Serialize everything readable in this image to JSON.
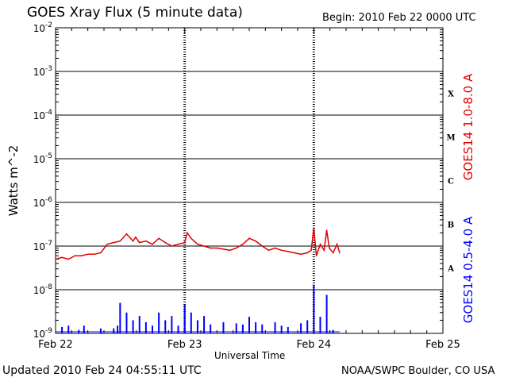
{
  "header": {
    "title": "GOES Xray Flux (5 minute data)",
    "begin": "Begin:  2010 Feb 22 0000 UTC"
  },
  "footer": {
    "updated": "Updated 2010 Feb 24 04:55:11 UTC",
    "credit": "NOAA/SWPC Boulder, CO USA"
  },
  "colors": {
    "long_channel": "#e00000",
    "short_channel": "#0000ff",
    "axis": "#000000"
  },
  "chart_data": {
    "type": "line",
    "title": "GOES Xray Flux (5 minute data)",
    "xlabel": "Universal Time",
    "ylabel": "Watts m^-2",
    "yscale": "log",
    "ylim": [
      1e-09,
      0.01
    ],
    "xlim_days": [
      0,
      3
    ],
    "x_tick_labels": [
      "Feb 22",
      "Feb 23",
      "Feb 24",
      "Feb 25"
    ],
    "y_tick_exponents": [
      -9,
      -8,
      -7,
      -6,
      -5,
      -4,
      -3,
      -2
    ],
    "y_tick_labels": [
      "10",
      "10",
      "10",
      "10",
      "10",
      "10",
      "10",
      "10"
    ],
    "y_tick_superscripts": [
      "-9",
      "-8",
      "-7",
      "-6",
      "-5",
      "-4",
      "-3",
      "-2"
    ],
    "flare_classes": [
      "A",
      "B",
      "C",
      "M",
      "X"
    ],
    "grid": true,
    "legend_position": "right",
    "series": [
      {
        "name": "GOES14 1.0-8.0 A",
        "color": "#e00000",
        "x": [
          0,
          0.05,
          0.1,
          0.15,
          0.2,
          0.25,
          0.3,
          0.35,
          0.4,
          0.45,
          0.5,
          0.55,
          0.6,
          0.62,
          0.65,
          0.7,
          0.75,
          0.8,
          0.85,
          0.9,
          0.95,
          1.0,
          1.02,
          1.05,
          1.1,
          1.15,
          1.2,
          1.25,
          1.3,
          1.35,
          1.4,
          1.45,
          1.5,
          1.55,
          1.6,
          1.65,
          1.7,
          1.75,
          1.8,
          1.85,
          1.9,
          1.95,
          1.98,
          2.0,
          2.02,
          2.05,
          2.08,
          2.1,
          2.12,
          2.15,
          2.18,
          2.2
        ],
        "values": [
          5e-08,
          5.5e-08,
          5e-08,
          6e-08,
          6e-08,
          6.5e-08,
          6.5e-08,
          7e-08,
          1.1e-07,
          1.2e-07,
          1.3e-07,
          1.9e-07,
          1.3e-07,
          1.6e-07,
          1.2e-07,
          1.3e-07,
          1.1e-07,
          1.5e-07,
          1.2e-07,
          1e-07,
          1.1e-07,
          1.2e-07,
          2e-07,
          1.5e-07,
          1.1e-07,
          1e-07,
          9e-08,
          9e-08,
          8.5e-08,
          8e-08,
          9e-08,
          1.1e-07,
          1.5e-07,
          1.3e-07,
          1e-07,
          8e-08,
          9e-08,
          8e-08,
          7.5e-08,
          7e-08,
          6.5e-08,
          7e-08,
          8e-08,
          2.6e-07,
          6e-08,
          1.1e-07,
          8e-08,
          2.3e-07,
          9e-08,
          7e-08,
          1.1e-07,
          7e-08
        ]
      },
      {
        "name": "GOES14 0.5-4.0 A",
        "color": "#0000ff",
        "x": [
          0.05,
          0.1,
          0.18,
          0.22,
          0.35,
          0.45,
          0.48,
          0.5,
          0.55,
          0.6,
          0.65,
          0.7,
          0.75,
          0.8,
          0.85,
          0.9,
          0.95,
          1.0,
          1.05,
          1.1,
          1.15,
          1.2,
          1.3,
          1.4,
          1.45,
          1.5,
          1.55,
          1.6,
          1.7,
          1.75,
          1.8,
          1.9,
          1.95,
          2.0,
          2.05,
          2.1,
          2.15
        ],
        "values": [
          1.4e-09,
          1.5e-09,
          1.2e-09,
          1.5e-09,
          1.3e-09,
          1.3e-09,
          1.5e-09,
          5e-09,
          3e-09,
          2e-09,
          2.5e-09,
          1.8e-09,
          1.5e-09,
          3e-09,
          2e-09,
          2.5e-09,
          1.5e-09,
          4.5e-09,
          3e-09,
          2e-09,
          2.5e-09,
          1.6e-09,
          1.8e-09,
          1.7e-09,
          1.6e-09,
          2.4e-09,
          1.8e-09,
          1.6e-09,
          1.8e-09,
          1.5e-09,
          1.4e-09,
          1.7e-09,
          2e-09,
          1.3e-08,
          2.4e-09,
          7.6e-09,
          1.2e-09
        ]
      }
    ]
  }
}
